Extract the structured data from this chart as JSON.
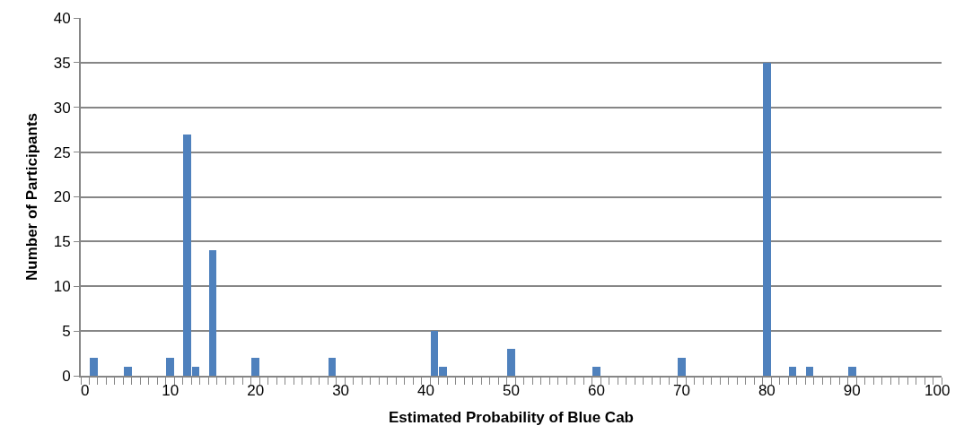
{
  "chart_data": {
    "type": "bar",
    "xlabel": "Estimated Probability of Blue Cab",
    "ylabel": "Number of Participants",
    "categories": [
      "0",
      null,
      null,
      null,
      null,
      null,
      null,
      null,
      null,
      null,
      "10",
      null,
      null,
      null,
      null,
      null,
      null,
      null,
      null,
      null,
      "20",
      null,
      null,
      null,
      null,
      null,
      null,
      null,
      null,
      null,
      "30",
      null,
      null,
      null,
      null,
      null,
      null,
      null,
      null,
      null,
      "40",
      null,
      null,
      null,
      null,
      null,
      null,
      null,
      null,
      null,
      "50",
      null,
      null,
      null,
      null,
      null,
      null,
      null,
      null,
      null,
      "60",
      null,
      null,
      null,
      null,
      null,
      null,
      null,
      null,
      null,
      "70",
      null,
      null,
      null,
      null,
      null,
      null,
      null,
      null,
      null,
      "80",
      null,
      null,
      null,
      null,
      null,
      null,
      null,
      null,
      null,
      "90",
      null,
      null,
      null,
      null,
      null,
      null,
      null,
      null,
      null,
      "100"
    ],
    "values": [
      0,
      2,
      0,
      0,
      0,
      1,
      0,
      0,
      0,
      0,
      2,
      0,
      27,
      1,
      0,
      14,
      0,
      0,
      0,
      0,
      2,
      0,
      0,
      0,
      0,
      0,
      0,
      0,
      0,
      2,
      0,
      0,
      0,
      0,
      0,
      0,
      0,
      0,
      0,
      0,
      0,
      5,
      1,
      0,
      0,
      0,
      0,
      0,
      0,
      0,
      3,
      0,
      0,
      0,
      0,
      0,
      0,
      0,
      0,
      0,
      1,
      0,
      0,
      0,
      0,
      0,
      0,
      0,
      0,
      0,
      2,
      0,
      0,
      0,
      0,
      0,
      0,
      0,
      0,
      0,
      35,
      0,
      0,
      1,
      0,
      1,
      0,
      0,
      0,
      0,
      1,
      0,
      0,
      0,
      0,
      0,
      0,
      0,
      0,
      0,
      0
    ],
    "color": "#4f81bd",
    "ylim": [
      0,
      40
    ],
    "yticks": [
      0,
      5,
      10,
      15,
      20,
      25,
      30,
      35,
      40
    ],
    "grid": "y"
  }
}
